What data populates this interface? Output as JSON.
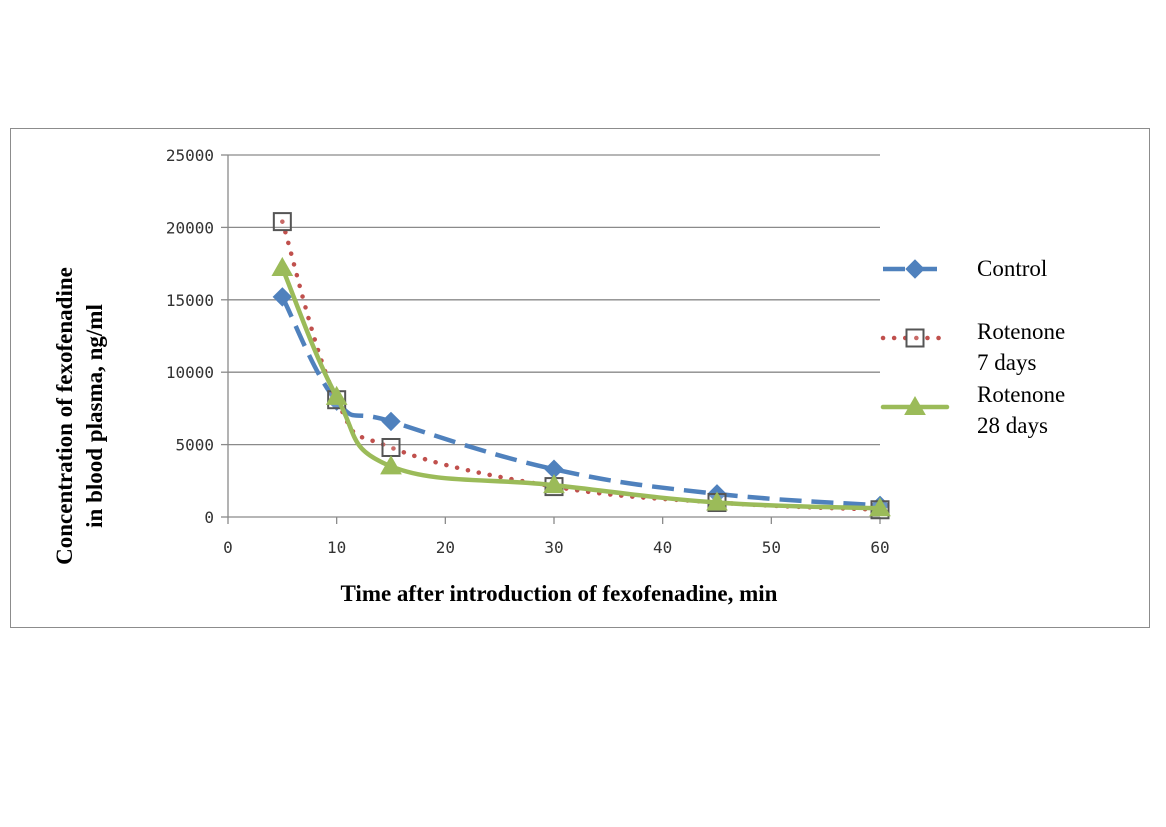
{
  "chart_data": {
    "type": "line",
    "title": "",
    "xlabel": "Time after introduction of fexofenadine, min",
    "ylabel_lines": [
      "Concentration of fexofenadine",
      "in blood plasma, ng/ml"
    ],
    "xlim": [
      0,
      60
    ],
    "ylim": [
      0,
      25000
    ],
    "xticks": [
      "0",
      "10",
      "20",
      "30",
      "40",
      "50",
      "60"
    ],
    "yticks": [
      "0",
      "5000",
      "10000",
      "15000",
      "20000",
      "25000"
    ],
    "grid": "horizontal",
    "legend_position": "right",
    "x": [
      5,
      10,
      15,
      30,
      45,
      60
    ],
    "series": [
      {
        "name": "Control",
        "legend_lines": [
          "Control"
        ],
        "values": [
          15200,
          8000,
          6600,
          3300,
          1600,
          800
        ],
        "color": "#4f81bd",
        "line_style": "dashed",
        "marker": "diamond"
      },
      {
        "name": "Rotenone 7 days",
        "legend_lines": [
          "Rotenone",
          "7 days"
        ],
        "values": [
          20400,
          8100,
          4800,
          2100,
          1000,
          500
        ],
        "color": "#c0504d",
        "line_style": "dotted",
        "marker": "square"
      },
      {
        "name": "Rotenone 28 days",
        "legend_lines": [
          "Rotenone",
          "28 days"
        ],
        "values": [
          17200,
          8300,
          3500,
          2200,
          1000,
          600
        ],
        "color": "#9bbb59",
        "line_style": "solid",
        "marker": "triangle"
      }
    ]
  }
}
